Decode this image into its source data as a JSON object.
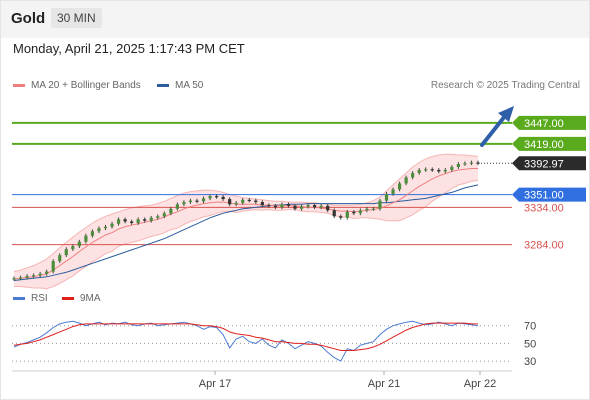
{
  "header": {
    "title": "Gold",
    "timeframe": "30 MIN"
  },
  "timestamp": "Monday, April 21, 2025 1:17:43 PM CET",
  "legend": {
    "bollinger": {
      "label": "MA 20 + Bollinger Bands",
      "color": "#f08080"
    },
    "ma50": {
      "label": "MA 50",
      "color": "#2b5c9e"
    }
  },
  "credit": "Research © 2025 Trading Central",
  "chart_data": [
    {
      "type": "line",
      "instrument": "Gold",
      "timeframe": "30 MIN",
      "x_ticks": [
        "Apr 17",
        "Apr 21",
        "Apr 22"
      ],
      "ylim": [
        3230,
        3475
      ],
      "last_price": {
        "value": 3392.97,
        "label": "3392.97"
      },
      "levels": [
        {
          "value": 3447.0,
          "label": "3447.00",
          "role": "target",
          "color": "#5aaa1e"
        },
        {
          "value": 3419.0,
          "label": "3419.00",
          "role": "target",
          "color": "#5aaa1e"
        },
        {
          "value": 3351.0,
          "label": "3351.00",
          "role": "pivot",
          "color": "#2f6fe0"
        },
        {
          "value": 3334.0,
          "label": "3334.00",
          "role": "support",
          "color": "#d9534f"
        },
        {
          "value": 3284.0,
          "label": "3284.00",
          "role": "support",
          "color": "#d9534f"
        }
      ],
      "series": [
        {
          "name": "Price",
          "values": [
            3239,
            3240,
            3242,
            3243,
            3245,
            3248,
            3262,
            3270,
            3278,
            3282,
            3288,
            3296,
            3302,
            3306,
            3308,
            3312,
            3318,
            3315,
            3313,
            3318,
            3316,
            3320,
            3322,
            3326,
            3332,
            3338,
            3341,
            3343,
            3342,
            3346,
            3349,
            3348,
            3345,
            3338,
            3340,
            3344,
            3343,
            3341,
            3337,
            3336,
            3334,
            3338,
            3336,
            3332,
            3335,
            3337,
            3334,
            3336,
            3330,
            3322,
            3320,
            3328,
            3326,
            3330,
            3332,
            3332,
            3343,
            3352,
            3358,
            3366,
            3374,
            3380,
            3384,
            3385,
            3384,
            3382,
            3384,
            3388,
            3392,
            3393,
            3394,
            3393
          ]
        },
        {
          "name": "MA 20",
          "values": [
            3238,
            3239,
            3240,
            3241,
            3243,
            3245,
            3250,
            3256,
            3262,
            3268,
            3275,
            3281,
            3287,
            3292,
            3297,
            3300,
            3305,
            3308,
            3310,
            3312,
            3314,
            3316,
            3318,
            3321,
            3325,
            3328,
            3332,
            3335,
            3337,
            3339,
            3340,
            3341,
            3341,
            3340,
            3338,
            3338,
            3338,
            3338,
            3337,
            3337,
            3336,
            3336,
            3336,
            3336,
            3335,
            3334,
            3334,
            3333,
            3332,
            3330,
            3329,
            3329,
            3328,
            3329,
            3330,
            3331,
            3333,
            3336,
            3340,
            3344,
            3350,
            3356,
            3362,
            3367,
            3372,
            3376,
            3379,
            3382,
            3384,
            3385,
            3386,
            3386
          ]
        },
        {
          "name": "BB Upper",
          "values": [
            3248,
            3250,
            3253,
            3256,
            3260,
            3265,
            3272,
            3280,
            3287,
            3294,
            3301,
            3307,
            3313,
            3318,
            3322,
            3325,
            3328,
            3331,
            3333,
            3335,
            3336,
            3337,
            3339,
            3342,
            3346,
            3350,
            3353,
            3355,
            3356,
            3357,
            3357,
            3356,
            3354,
            3351,
            3349,
            3347,
            3346,
            3345,
            3344,
            3343,
            3342,
            3342,
            3341,
            3341,
            3341,
            3340,
            3340,
            3339,
            3338,
            3337,
            3337,
            3337,
            3337,
            3338,
            3340,
            3343,
            3348,
            3356,
            3364,
            3372,
            3380,
            3388,
            3394,
            3399,
            3402,
            3404,
            3405,
            3405,
            3404,
            3404,
            3403,
            3402
          ]
        },
        {
          "name": "BB Lower",
          "values": [
            3228,
            3228,
            3227,
            3226,
            3226,
            3225,
            3228,
            3232,
            3237,
            3242,
            3249,
            3255,
            3261,
            3266,
            3272,
            3275,
            3282,
            3285,
            3287,
            3289,
            3292,
            3295,
            3297,
            3300,
            3304,
            3306,
            3311,
            3315,
            3318,
            3321,
            3323,
            3326,
            3328,
            3329,
            3327,
            3329,
            3330,
            3331,
            3330,
            3331,
            3330,
            3330,
            3331,
            3331,
            3329,
            3328,
            3328,
            3327,
            3326,
            3323,
            3321,
            3321,
            3319,
            3320,
            3320,
            3319,
            3318,
            3316,
            3316,
            3316,
            3320,
            3324,
            3330,
            3335,
            3342,
            3348,
            3353,
            3359,
            3364,
            3366,
            3369,
            3370
          ]
        },
        {
          "name": "MA 50",
          "values": [
            3236,
            3237,
            3238,
            3239,
            3240,
            3241,
            3243,
            3245,
            3247,
            3250,
            3253,
            3256,
            3259,
            3262,
            3265,
            3268,
            3271,
            3274,
            3277,
            3280,
            3283,
            3286,
            3289,
            3292,
            3296,
            3300,
            3304,
            3308,
            3312,
            3316,
            3320,
            3323,
            3326,
            3328,
            3330,
            3332,
            3333,
            3334,
            3335,
            3336,
            3337,
            3337,
            3338,
            3338,
            3338,
            3339,
            3339,
            3339,
            3339,
            3339,
            3339,
            3339,
            3339,
            3339,
            3339,
            3339,
            3340,
            3340,
            3341,
            3342,
            3343,
            3344,
            3345,
            3346,
            3348,
            3350,
            3352,
            3354,
            3357,
            3360,
            3362,
            3364
          ]
        }
      ]
    },
    {
      "type": "line",
      "ylim": [
        20,
        90
      ],
      "y_ticks": [
        70,
        50,
        30
      ],
      "series": [
        {
          "name": "RSI",
          "color": "#4a7bd0",
          "values": [
            46,
            49,
            51,
            54,
            57,
            62,
            68,
            72,
            74,
            75,
            73,
            70,
            72,
            74,
            71,
            73,
            72,
            74,
            71,
            70,
            72,
            73,
            70,
            71,
            72,
            73,
            74,
            72,
            70,
            66,
            69,
            68,
            60,
            45,
            55,
            58,
            52,
            50,
            55,
            48,
            45,
            54,
            50,
            44,
            48,
            52,
            50,
            47,
            40,
            34,
            30,
            44,
            42,
            48,
            50,
            52,
            60,
            66,
            70,
            72,
            74,
            75,
            73,
            71,
            72,
            74,
            72,
            70,
            73,
            72,
            71,
            70
          ]
        },
        {
          "name": "9MA",
          "color": "#e0201c",
          "values": [
            48,
            49,
            50,
            52,
            54,
            57,
            60,
            63,
            66,
            69,
            71,
            72,
            72,
            72,
            72,
            72,
            72,
            72,
            72,
            72,
            72,
            72,
            72,
            72,
            72,
            72,
            72,
            72,
            71,
            70,
            70,
            69,
            67,
            63,
            61,
            60,
            59,
            57,
            56,
            54,
            52,
            52,
            51,
            50,
            50,
            49,
            49,
            48,
            46,
            44,
            42,
            42,
            42,
            43,
            44,
            46,
            49,
            53,
            57,
            61,
            65,
            68,
            70,
            72,
            73,
            73,
            73,
            73,
            73,
            73,
            72,
            72
          ]
        }
      ]
    }
  ]
}
